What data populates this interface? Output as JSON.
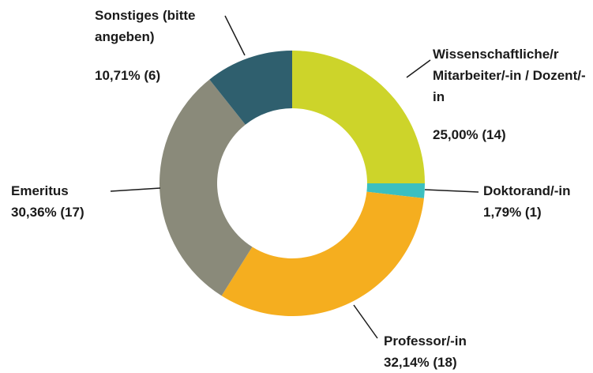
{
  "chart_data": {
    "type": "donut",
    "categories": [
      "Wissenschaftliche/r Mitarbeiter/-in / Dozent/-in",
      "Doktorand/-in",
      "Professor/-in",
      "Emeritus",
      "Sonstiges (bitte angeben)"
    ],
    "values": [
      25.0,
      1.79,
      32.14,
      30.36,
      10.71
    ],
    "value_labels": [
      "25,00% (14)",
      "1,79% (1)",
      "32,14% (18)",
      "30,36% (17)",
      "10,71% (6)"
    ],
    "colors": [
      "#cdd42a",
      "#3bbfc0",
      "#f5ae1f",
      "#8a8a7a",
      "#2f5f6e"
    ]
  }
}
